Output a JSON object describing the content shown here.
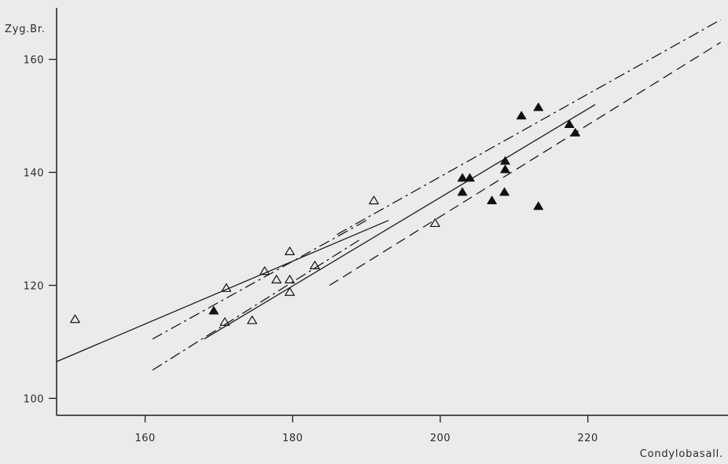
{
  "chart_data": {
    "type": "scatter",
    "xlabel": "Condylobasall.",
    "ylabel": "Zyg.Br.",
    "xlim": [
      148,
      239
    ],
    "ylim": [
      97,
      168
    ],
    "x_ticks": [
      160,
      180,
      200,
      220
    ],
    "y_ticks": [
      100,
      120,
      140,
      160
    ],
    "grid": false,
    "legend": "none",
    "series": [
      {
        "marker": "open-triangle",
        "points": [
          {
            "x": 150.5,
            "y": 114.0
          },
          {
            "x": 171.0,
            "y": 119.5
          },
          {
            "x": 170.8,
            "y": 113.5
          },
          {
            "x": 174.5,
            "y": 113.8
          },
          {
            "x": 176.2,
            "y": 122.5
          },
          {
            "x": 177.8,
            "y": 121.0
          },
          {
            "x": 179.6,
            "y": 126.0
          },
          {
            "x": 179.6,
            "y": 121.0
          },
          {
            "x": 179.6,
            "y": 118.8
          },
          {
            "x": 183.0,
            "y": 123.5
          },
          {
            "x": 191.0,
            "y": 135.0
          },
          {
            "x": 199.3,
            "y": 131.0
          }
        ]
      },
      {
        "marker": "filled-triangle",
        "points": [
          {
            "x": 169.3,
            "y": 115.5
          },
          {
            "x": 203.0,
            "y": 139.0
          },
          {
            "x": 203.0,
            "y": 136.5
          },
          {
            "x": 204.0,
            "y": 139.0
          },
          {
            "x": 207.0,
            "y": 135.0
          },
          {
            "x": 208.7,
            "y": 136.5
          },
          {
            "x": 208.8,
            "y": 140.5
          },
          {
            "x": 208.8,
            "y": 142.0
          },
          {
            "x": 211.0,
            "y": 150.0
          },
          {
            "x": 213.3,
            "y": 151.5
          },
          {
            "x": 213.3,
            "y": 134.0
          },
          {
            "x": 217.5,
            "y": 148.5
          },
          {
            "x": 218.3,
            "y": 147.0
          }
        ]
      }
    ],
    "lines": [
      {
        "style": "solid",
        "from": [
          148.0,
          106.5
        ],
        "to": [
          193.0,
          131.5
        ]
      },
      {
        "style": "dash-dot",
        "from": [
          161.0,
          110.5
        ],
        "to": [
          190.0,
          131.5
        ]
      },
      {
        "style": "dash-dot",
        "from": [
          161.0,
          105.0
        ],
        "to": [
          189.0,
          128.0
        ]
      },
      {
        "style": "solid",
        "from": [
          168.0,
          110.5
        ],
        "to": [
          221.0,
          152.0
        ]
      },
      {
        "style": "dash-dot",
        "from": [
          186.0,
          129.0
        ],
        "to": [
          238.0,
          167.0
        ]
      },
      {
        "style": "dashed",
        "from": [
          185.0,
          120.0
        ],
        "to": [
          238.0,
          163.0
        ]
      }
    ]
  }
}
